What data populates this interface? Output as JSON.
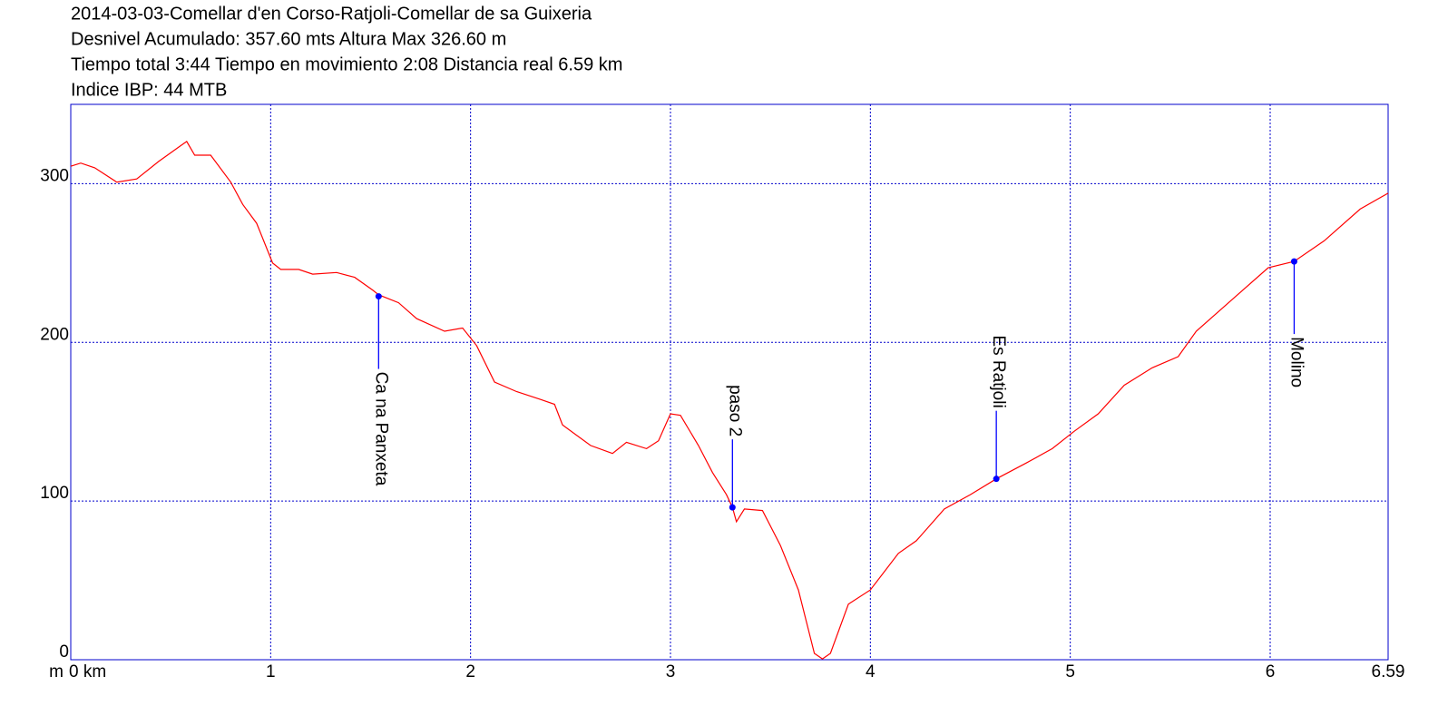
{
  "chart_data": {
    "type": "line",
    "title_lines": [
      "2014-03-03-Comellar d'en Corso-Ratjoli-Comellar de sa Guixeria",
      "Desnivel Acumulado: 357.60 mts  Altura Max 326.60 m",
      "Tiempo total 3:44 Tiempo en movimiento 2:08 Distancia real 6.59 km",
      "Indice IBP: 44 MTB"
    ],
    "y_unit": "m",
    "xlim": [
      0,
      6.59
    ],
    "ylim": [
      0,
      350
    ],
    "xticks": [
      {
        "value": 0,
        "label": "0 km"
      },
      1,
      2,
      3,
      4,
      5,
      6,
      6.59
    ],
    "yticks": [
      0,
      100,
      200,
      300
    ],
    "grid": true,
    "grid_color": "#0000cc",
    "frame_color": "#0000cc",
    "series": [
      {
        "color": "#ff0000",
        "x": [
          0,
          0.05,
          0.12,
          0.23,
          0.33,
          0.44,
          0.55,
          0.58,
          0.62,
          0.7,
          0.8,
          0.86,
          0.93,
          1.01,
          1.05,
          1.14,
          1.21,
          1.33,
          1.42,
          1.51,
          1.54,
          1.64,
          1.73,
          1.87,
          1.96,
          2.03,
          2.12,
          2.23,
          2.35,
          2.42,
          2.46,
          2.6,
          2.71,
          2.78,
          2.88,
          2.94,
          3.0,
          3.05,
          3.14,
          3.21,
          3.28,
          3.31,
          3.33,
          3.37,
          3.46,
          3.55,
          3.64,
          3.72,
          3.76,
          3.8,
          3.89,
          4.0,
          4.14,
          4.23,
          4.37,
          4.5,
          4.63,
          4.78,
          4.91,
          5.02,
          5.14,
          5.27,
          5.41,
          5.54,
          5.63,
          5.81,
          5.99,
          6.12,
          6.27,
          6.45,
          6.59
        ],
        "values": [
          311,
          313,
          310,
          301,
          303,
          314,
          324,
          326.6,
          318,
          318,
          301,
          287,
          275,
          250,
          246,
          246,
          243,
          244,
          241,
          233,
          230,
          225,
          215,
          207,
          209,
          198,
          175,
          169,
          164,
          161,
          148,
          135,
          130,
          137,
          133,
          138,
          155,
          154,
          135,
          118,
          104,
          96,
          87,
          95,
          94,
          72,
          44,
          4,
          0.5,
          4,
          35,
          44,
          67,
          75,
          95,
          104,
          114,
          124,
          133,
          144,
          155,
          173,
          184,
          191,
          207,
          227,
          247,
          251,
          264,
          284,
          294
        ]
      }
    ],
    "waypoints": [
      {
        "name": "Ca na Panxeta",
        "x": 1.54,
        "y": 229,
        "label_position": "below"
      },
      {
        "name": "paso 2",
        "x": 3.31,
        "y": 96,
        "label_position": "above"
      },
      {
        "name": "Es Ratjoli",
        "x": 4.63,
        "y": 114,
        "label_position": "above"
      },
      {
        "name": "Molino",
        "x": 6.12,
        "y": 251,
        "label_position": "below"
      }
    ],
    "waypoint_color": "#0000ff"
  }
}
